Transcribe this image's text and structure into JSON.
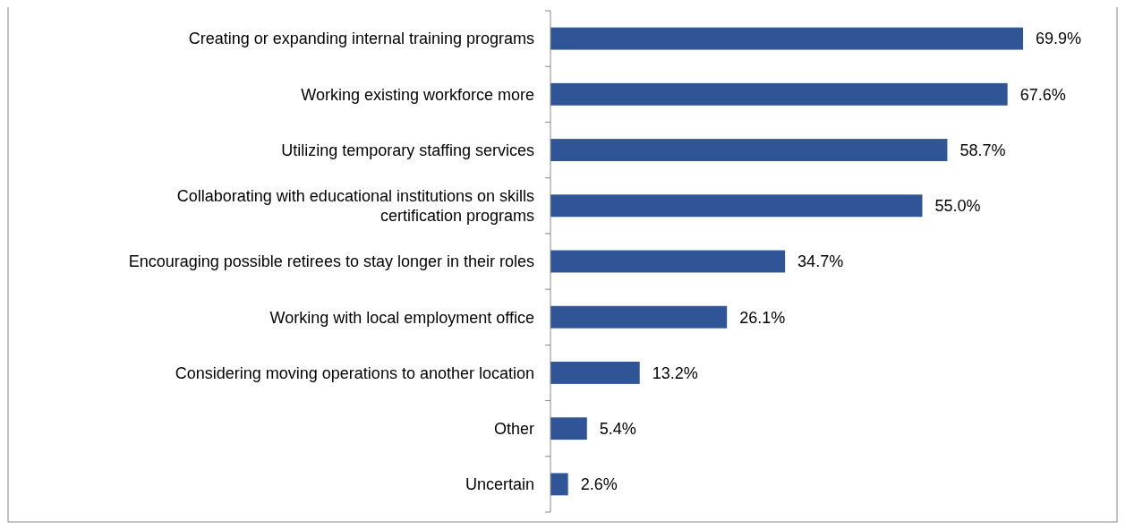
{
  "chart_data": {
    "type": "bar",
    "orientation": "horizontal",
    "categories": [
      "Creating or expanding internal training programs",
      "Working existing workforce more",
      "Utilizing temporary staffing services",
      "Collaborating with educational institutions on skills certification programs",
      "Encouraging possible retirees to stay longer in their roles",
      "Working with local employment office",
      "Considering moving operations to another location",
      "Other",
      "Uncertain"
    ],
    "values": [
      69.9,
      67.6,
      58.7,
      55.0,
      34.7,
      26.1,
      13.2,
      5.4,
      2.6
    ],
    "value_labels": [
      "69.9%",
      "67.6%",
      "58.7%",
      "55.0%",
      "34.7%",
      "26.1%",
      "13.2%",
      "5.4%",
      "2.6%"
    ],
    "color": "#2f5597"
  }
}
